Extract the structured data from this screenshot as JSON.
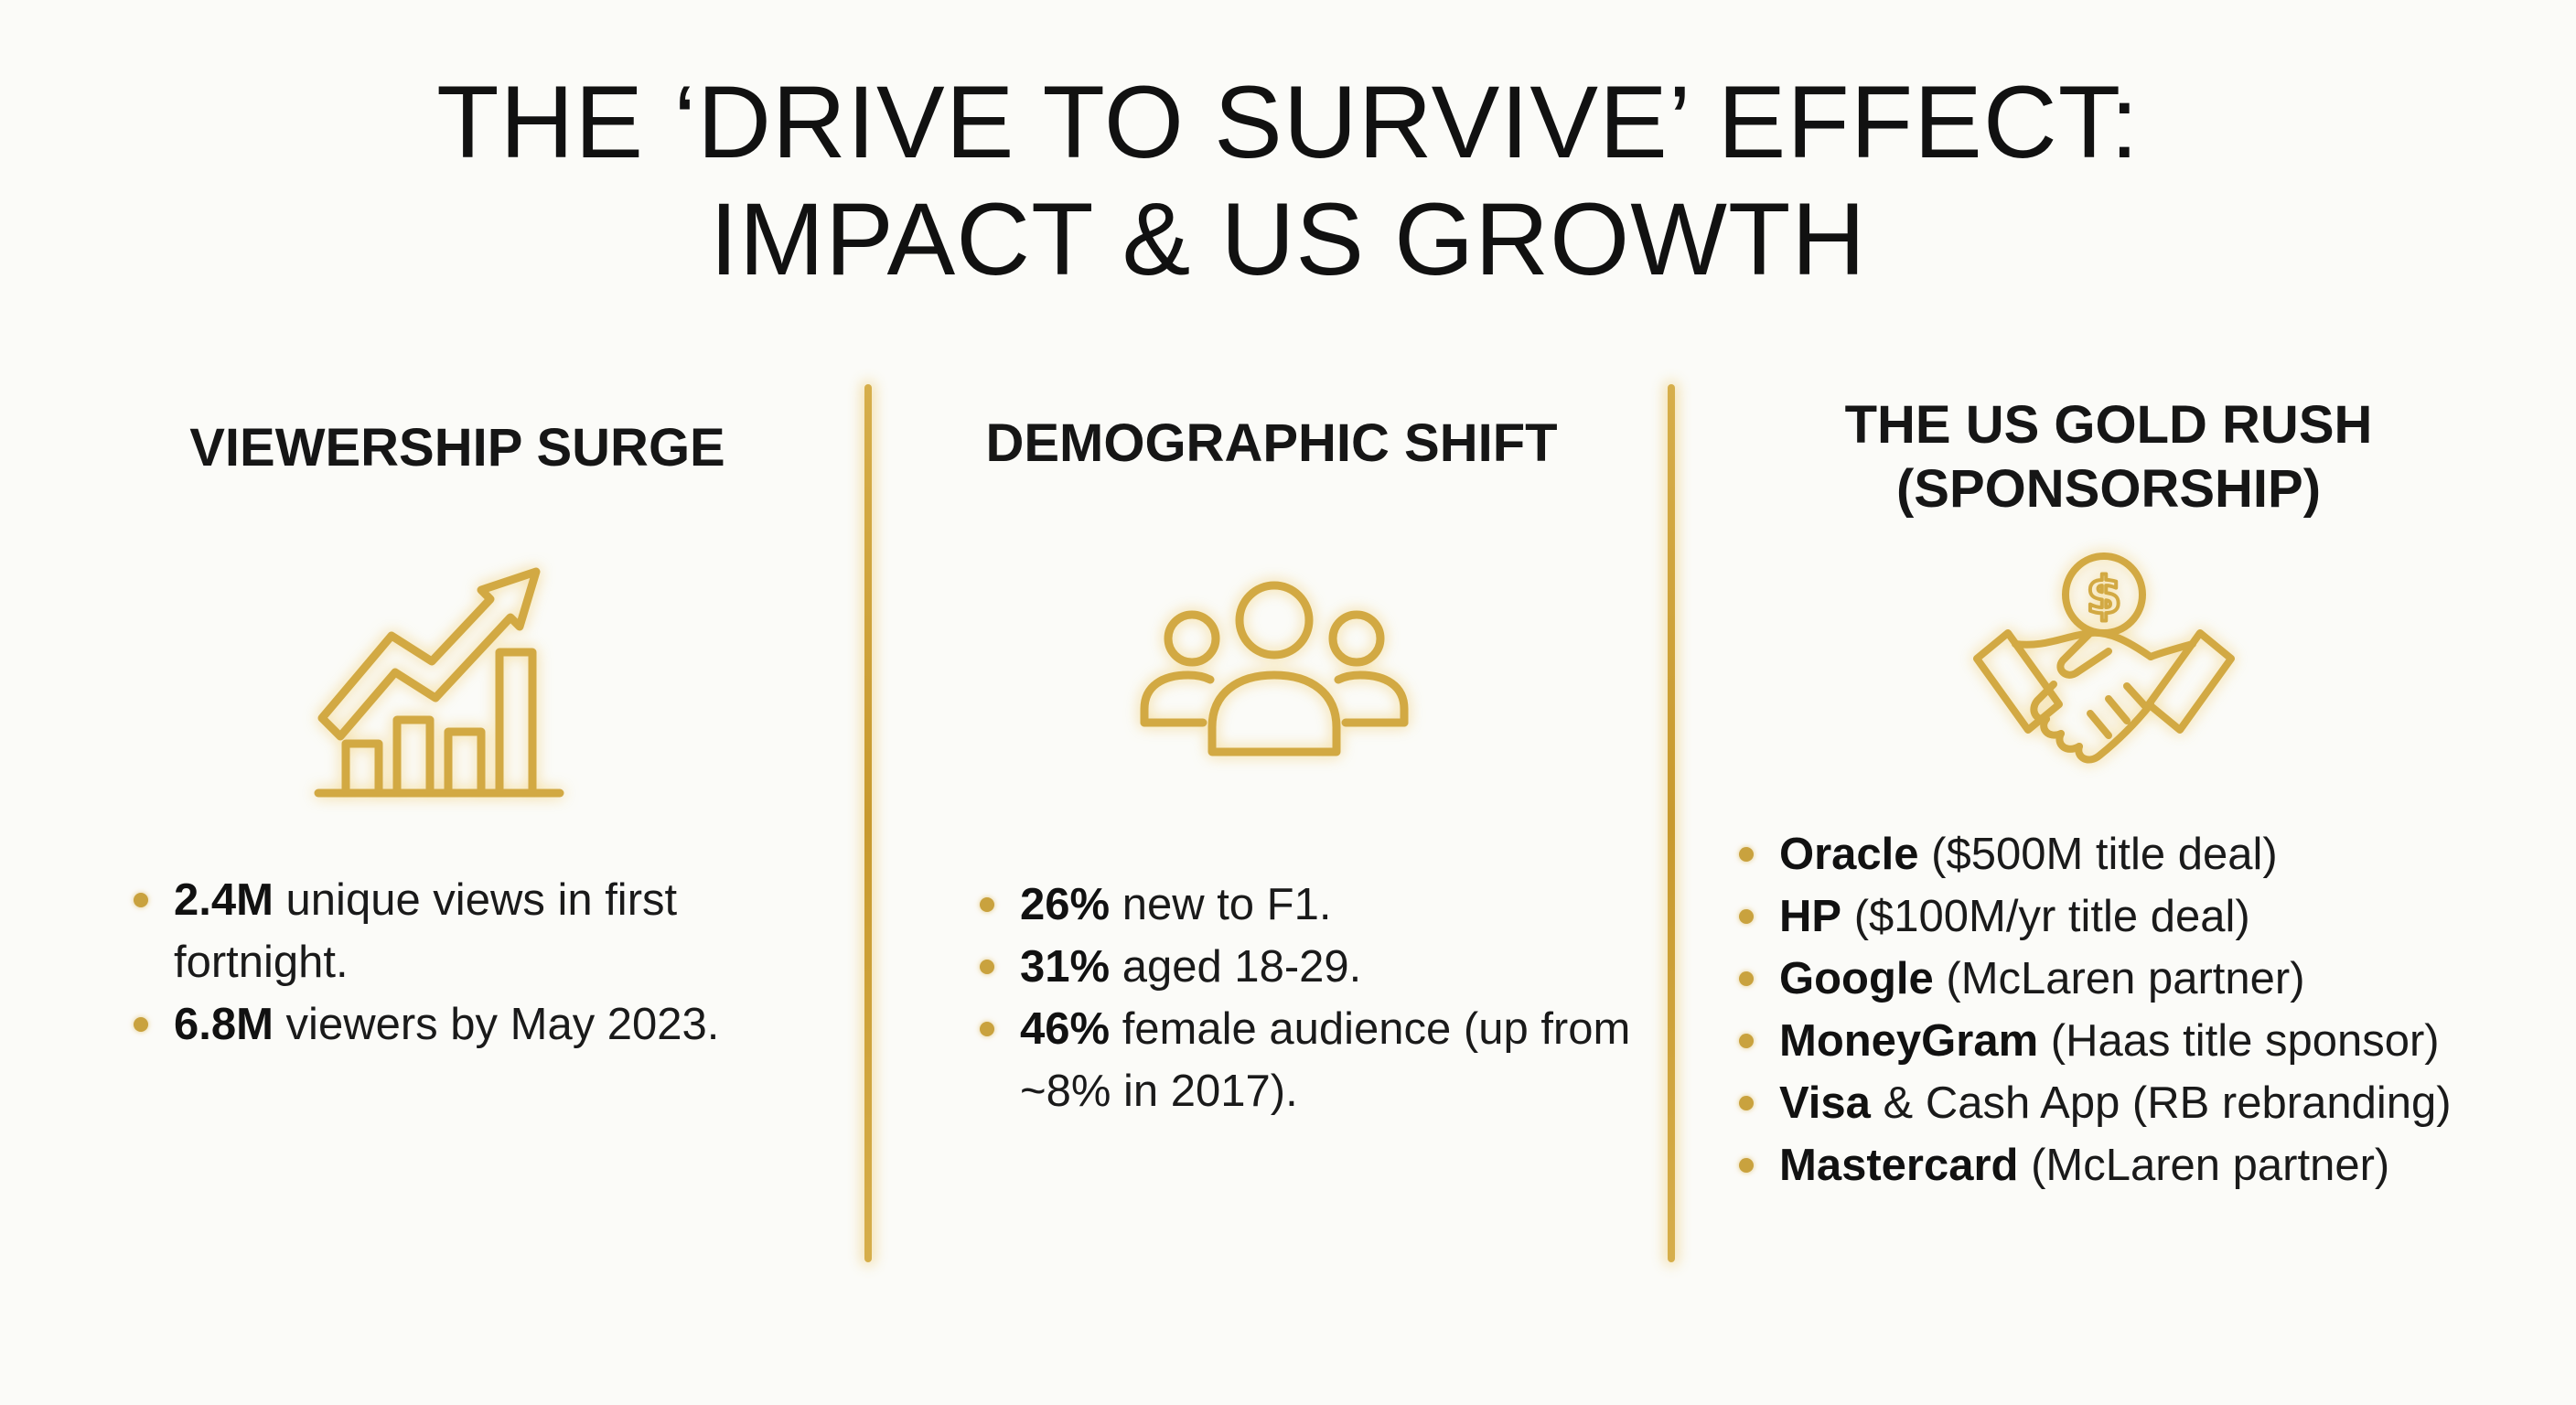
{
  "title": {
    "line1": "THE ‘DRIVE TO SURVIVE’ EFFECT:",
    "line2": "IMPACT & US GROWTH"
  },
  "columns": [
    {
      "heading": "VIEWERSHIP SURGE",
      "icon": "bar-chart-growth-arrow-icon",
      "bullets": [
        {
          "bold": "2.4M",
          "text": " unique views in first fortnight."
        },
        {
          "bold": "6.8M",
          "text": " viewers by May 2023."
        }
      ]
    },
    {
      "heading": "DEMOGRAPHIC SHIFT",
      "icon": "people-group-icon",
      "bullets": [
        {
          "bold": "26%",
          "text": " new to F1."
        },
        {
          "bold": "31%",
          "text": " aged 18-29."
        },
        {
          "bold": "46%",
          "text": " female audience (up from ~8% in 2017)."
        }
      ]
    },
    {
      "heading_line1": "THE US GOLD RUSH",
      "heading_line2": "(SPONSORSHIP)",
      "icon": "handshake-dollar-coin-icon",
      "bullets": [
        {
          "bold": "Oracle",
          "text": " ($500M title deal)"
        },
        {
          "bold": "HP",
          "text": " ($100M/yr title deal)"
        },
        {
          "bold": "Google",
          "text": " (McLaren partner)"
        },
        {
          "bold": "MoneyGram",
          "text": " (Haas title sponsor)"
        },
        {
          "bold": "Visa",
          "text": " & Cash App (RB rebranding)"
        },
        {
          "bold": "Mastercard",
          "text": " (McLaren partner)"
        }
      ]
    }
  ],
  "colors": {
    "background": "#fbfbf8",
    "gold": "#c9a23e",
    "gold_light": "#e8c466",
    "text": "#141414"
  }
}
